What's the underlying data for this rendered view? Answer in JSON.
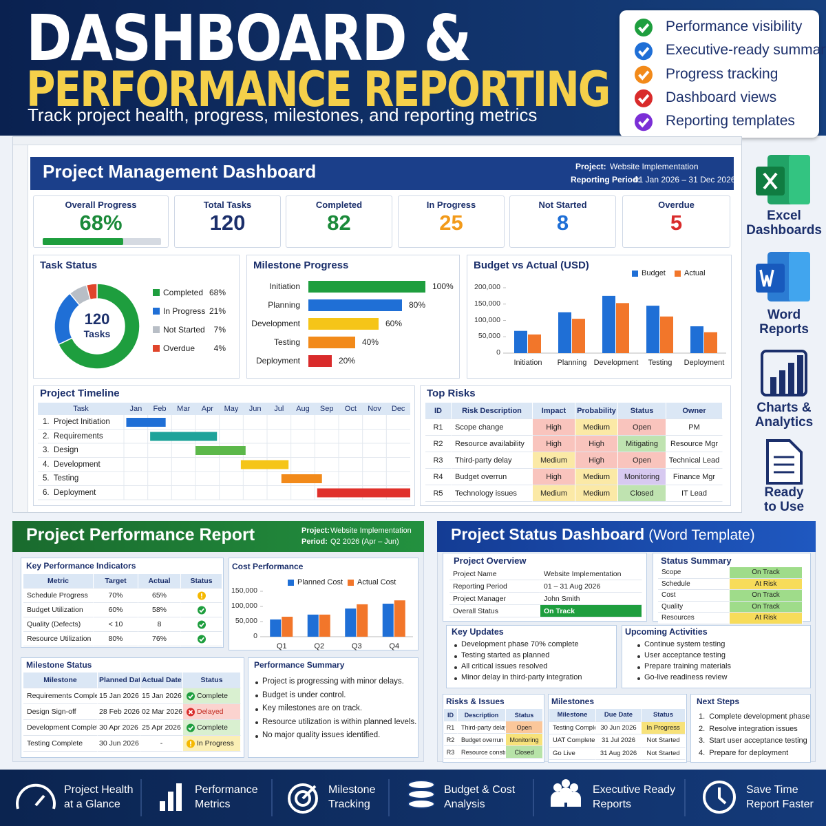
{
  "header": {
    "title_line1": "DASHBOARD &",
    "title_line2": "PERFORMANCE REPORTING",
    "subtitle": "Track project health, progress, milestones, and reporting metrics",
    "features": [
      {
        "label": "Performance visibility",
        "color": "#1e9e3e"
      },
      {
        "label": "Executive-ready summary",
        "color": "#1f6fd6"
      },
      {
        "label": "Progress tracking",
        "color": "#f28a1a"
      },
      {
        "label": "Dashboard views",
        "color": "#d92b2b"
      },
      {
        "label": "Reporting templates",
        "color": "#7b2fd6"
      }
    ]
  },
  "side_labels": [
    "Excel\nDashboards",
    "Word\nReports",
    "Charts &\nAnalytics",
    "Ready\nto Use"
  ],
  "excel_dashboard": {
    "title": "Project Management Dashboard",
    "project_label": "Project:",
    "project": "Website Implementation",
    "period_label": "Reporting Period:",
    "period": "01 Jan 2026 – 31 Dec 2026",
    "kpis": [
      {
        "label": "Overall Progress",
        "value": 68,
        "value_label": "68%",
        "xlim": [
          0,
          100
        ],
        "color": "#1b8a3a"
      },
      {
        "label": "Total Tasks",
        "value": 120,
        "color": "#1b2f6b"
      },
      {
        "label": "Completed",
        "value": 82,
        "color": "#1b8a3a"
      },
      {
        "label": "In Progress",
        "value": 25,
        "color": "#f29a1a"
      },
      {
        "label": "Not Started",
        "value": 8,
        "color": "#1f6fd6"
      },
      {
        "label": "Overdue",
        "value": 5,
        "color": "#d92b2b"
      }
    ],
    "task_status": {
      "title": "Task Status",
      "total": 120,
      "total_label": "Tasks",
      "items": [
        {
          "name": "Completed",
          "value": 68,
          "value_label": "68%",
          "color": "#1e9e3e"
        },
        {
          "name": "In Progress",
          "value": 21,
          "value_label": "21%",
          "color": "#1f6fd6"
        },
        {
          "name": "Not Started",
          "value": 7,
          "value_label": "7%",
          "color": "#b8bec6"
        },
        {
          "name": "Overdue",
          "value": 4,
          "value_label": "4%",
          "color": "#e0452b"
        }
      ]
    },
    "milestone_progress": {
      "title": "Milestone Progress",
      "categories": [
        "Initiation",
        "Planning",
        "Development",
        "Testing",
        "Deployment"
      ],
      "values": [
        100,
        80,
        60,
        40,
        20
      ],
      "value_labels": [
        "100%",
        "80%",
        "60%",
        "40%",
        "20%"
      ],
      "colors": [
        "#1e9e3e",
        "#1f6fd6",
        "#f5c518",
        "#f28a1a",
        "#d92b2b"
      ],
      "xlim": [
        0,
        100
      ]
    },
    "budget_vs_actual": {
      "title": "Budget vs Actual (USD)",
      "categories": [
        "Initiation",
        "Planning",
        "Development",
        "Testing",
        "Deployment"
      ],
      "series": [
        {
          "name": "Budget",
          "color": "#1f6fd6",
          "values": [
            68000,
            125000,
            175000,
            145000,
            82000
          ]
        },
        {
          "name": "Actual",
          "color": "#f2762a",
          "values": [
            57000,
            105000,
            153000,
            112000,
            64000
          ]
        }
      ],
      "ylim": [
        0,
        200000
      ],
      "yticks": [
        0,
        {
          "value": 50000,
          "label": "50,000"
        },
        {
          "value": 100000,
          "label": "100,000"
        },
        {
          "value": 150000,
          "label": "150,000"
        },
        {
          "value": 200000,
          "label": "200,000"
        }
      ]
    },
    "timeline": {
      "title": "Project Timeline",
      "task_header": "Task",
      "months": [
        "Jan",
        "Feb",
        "Mar",
        "Apr",
        "May",
        "Jun",
        "Jul",
        "Aug",
        "Sep",
        "Oct",
        "Nov",
        "Dec"
      ],
      "tasks": [
        {
          "name": "1.  Project Initiation",
          "start": 0.1,
          "end": 1.75,
          "color": "#1f6fd6"
        },
        {
          "name": "2.  Requirements",
          "start": 1.1,
          "end": 3.9,
          "color": "#1fa39a"
        },
        {
          "name": "3.  Design",
          "start": 3,
          "end": 5.1,
          "color": "#5cb84a"
        },
        {
          "name": "4.  Development",
          "start": 4.9,
          "end": 6.9,
          "color": "#f5c518"
        },
        {
          "name": "5.  Testing",
          "start": 6.6,
          "end": 8.3,
          "color": "#f28a1a"
        },
        {
          "name": "6.  Deployment",
          "start": 8.1,
          "end": 12,
          "color": "#e0302b"
        }
      ]
    },
    "top_risks": {
      "title": "Top Risks",
      "columns": [
        "ID",
        "Risk Description",
        "Impact",
        "Probability",
        "Status",
        "Owner"
      ],
      "rows": [
        [
          "R1",
          "Scope change",
          {
            "text": "High",
            "bg": "#f9c4bd"
          },
          {
            "text": "Medium",
            "bg": "#fbe9a6"
          },
          {
            "text": "Open",
            "bg": "#f9c4bd"
          },
          "PM"
        ],
        [
          "R2",
          "Resource availability",
          {
            "text": "High",
            "bg": "#f9c4bd"
          },
          {
            "text": "High",
            "bg": "#f9c4bd"
          },
          {
            "text": "Mitigating",
            "bg": "#bfe3b0"
          },
          "Resource Mgr"
        ],
        [
          "R3",
          "Third-party delay",
          {
            "text": "Medium",
            "bg": "#fbe9a6"
          },
          {
            "text": "High",
            "bg": "#f9c4bd"
          },
          {
            "text": "Open",
            "bg": "#f9c4bd"
          },
          "Technical Lead"
        ],
        [
          "R4",
          "Budget overrun",
          {
            "text": "High",
            "bg": "#f9c4bd"
          },
          {
            "text": "Medium",
            "bg": "#fbe9a6"
          },
          {
            "text": "Monitoring",
            "bg": "#d7c9f0"
          },
          "Finance Mgr"
        ],
        [
          "R5",
          "Technology issues",
          {
            "text": "Medium",
            "bg": "#fbe9a6"
          },
          {
            "text": "Medium",
            "bg": "#fbe9a6"
          },
          {
            "text": "Closed",
            "bg": "#bfe3b0"
          },
          "IT Lead"
        ]
      ]
    }
  },
  "performance_report": {
    "title": "Project Performance Report",
    "project_label": "Project:",
    "project": "Website Implementation",
    "period_label": "Period:",
    "period": "Q2 2026 (Apr – Jun)",
    "kpi_table": {
      "title": "Key Performance Indicators",
      "columns": [
        "Metric",
        "Target",
        "Actual",
        "Status"
      ],
      "rows": [
        [
          "Schedule Progress",
          "70%",
          "65%",
          {
            "icon": "warn",
            "icon_color": "#f5b800"
          }
        ],
        [
          "Budget Utilization",
          "60%",
          "58%",
          {
            "icon": "check",
            "icon_color": "#1e9e3e"
          }
        ],
        [
          "Quality (Defects)",
          "< 10",
          "8",
          {
            "icon": "check",
            "icon_color": "#1e9e3e"
          }
        ],
        [
          "Resource Utilization",
          "80%",
          "76%",
          {
            "icon": "check",
            "icon_color": "#1e9e3e"
          }
        ]
      ]
    },
    "cost_performance": {
      "title": "Cost Performance",
      "categories": [
        "Q1",
        "Q2",
        "Q3",
        "Q4"
      ],
      "series": [
        {
          "name": "Planned Cost",
          "color": "#1f6fd6",
          "values": [
            57000,
            73000,
            93000,
            109000
          ]
        },
        {
          "name": "Actual Cost",
          "color": "#f2762a",
          "values": [
            66000,
            73000,
            107000,
            120000
          ]
        }
      ],
      "ylim": [
        0,
        150000
      ],
      "yticks": [
        0,
        {
          "value": 50000,
          "label": "50,000"
        },
        {
          "value": 100000,
          "label": "100,000"
        },
        {
          "value": 150000,
          "label": "150,000"
        }
      ]
    },
    "milestone_status": {
      "title": "Milestone Status",
      "columns": [
        "Milestone",
        "Planned Date",
        "Actual Date",
        "Status"
      ],
      "rows": [
        [
          "Requirements Complete",
          "15 Jan 2026",
          "15 Jan 2026",
          {
            "text": "Complete",
            "bg": "#d9f0d0",
            "icon": "check",
            "icon_color": "#1e9e3e"
          }
        ],
        [
          "Design Sign-off",
          "28 Feb 2026",
          "02 Mar 2026",
          {
            "text": "Delayed",
            "bg": "#fbd3cf",
            "fg": "#c0261c",
            "icon": "cross",
            "icon_color": "#d92b2b"
          }
        ],
        [
          "Development Complete",
          "30 Apr 2026",
          "25 Apr 2026",
          {
            "text": "Complete",
            "bg": "#d9f0d0",
            "icon": "check",
            "icon_color": "#1e9e3e"
          }
        ],
        [
          "Testing Complete",
          "30 Jun 2026",
          "-",
          {
            "text": "In Progress",
            "bg": "#fbefb5",
            "icon": "warn",
            "icon_color": "#f5b800"
          }
        ]
      ]
    },
    "summary": {
      "title": "Performance Summary",
      "items": [
        "Project is progressing with minor delays.",
        "Budget is under control.",
        "Key milestones are on track.",
        "Resource utilization is within planned levels.",
        "No major quality issues identified."
      ]
    }
  },
  "status_dashboard": {
    "title": "Project Status Dashboard",
    "title_note": "(Word Template)",
    "overview": {
      "title": "Project Overview",
      "rows": [
        [
          "Project Name",
          "Website Implementation"
        ],
        [
          "Reporting Period",
          "01 – 31 Aug 2026"
        ],
        [
          "Project Manager",
          "John Smith"
        ],
        [
          "Overall Status",
          {
            "text": "On Track",
            "bg": "#1e9e3e",
            "fg": "#ffffff"
          }
        ]
      ]
    },
    "status_summary": {
      "title": "Status Summary",
      "rows": [
        [
          "Scope",
          {
            "text": "On Track",
            "bg": "#9fdc8a"
          }
        ],
        [
          "Schedule",
          {
            "text": "At Risk",
            "bg": "#f7dc5a"
          }
        ],
        [
          "Cost",
          {
            "text": "On Track",
            "bg": "#9fdc8a"
          }
        ],
        [
          "Quality",
          {
            "text": "On Track",
            "bg": "#9fdc8a"
          }
        ],
        [
          "Resources",
          {
            "text": "At Risk",
            "bg": "#f7dc5a"
          }
        ]
      ]
    },
    "key_updates": {
      "title": "Key Updates",
      "items": [
        "Development phase 70% complete",
        "Testing started as planned",
        "All critical issues resolved",
        "Minor delay in third-party integration"
      ]
    },
    "upcoming": {
      "title": "Upcoming Activities",
      "items": [
        "Continue system testing",
        "User acceptance testing",
        "Prepare training materials",
        "Go-live readiness review"
      ]
    },
    "risks": {
      "title": "Risks & Issues",
      "columns": [
        "ID",
        "Description",
        "Status"
      ],
      "rows": [
        [
          "R1",
          "Third-party delay",
          {
            "text": "Open",
            "bg": "#fbc79a"
          }
        ],
        [
          "R2",
          "Budget overrun",
          {
            "text": "Monitoring",
            "bg": "#f7e27a"
          }
        ],
        [
          "R3",
          "Resource constraint",
          {
            "text": "Closed",
            "bg": "#b7e3a8"
          }
        ]
      ]
    },
    "milestones": {
      "title": "Milestones",
      "columns": [
        "Milestone",
        "Due Date",
        "Status"
      ],
      "rows": [
        [
          "Testing Complete",
          "30 Jun 2026",
          {
            "text": "In Progress",
            "bg": "#f7e27a"
          }
        ],
        [
          "UAT Complete",
          "31 Jul 2026",
          "Not Started"
        ],
        [
          "Go Live",
          "31 Aug 2026",
          "Not Started"
        ]
      ]
    },
    "next_steps": {
      "title": "Next Steps",
      "items": [
        "1.  Complete development phase",
        "2.  Resolve integration issues",
        "3.  Start user acceptance testing",
        "4.  Prepare for deployment"
      ]
    }
  },
  "footer": [
    {
      "line1": "Project Health",
      "line2": "at a Glance"
    },
    {
      "line1": "Performance",
      "line2": "Metrics"
    },
    {
      "line1": "Milestone",
      "line2": "Tracking"
    },
    {
      "line1": "Budget & Cost",
      "line2": "Analysis"
    },
    {
      "line1": "Executive Ready",
      "line2": "Reports"
    },
    {
      "line1": "Save Time",
      "line2": "Report Faster"
    }
  ]
}
